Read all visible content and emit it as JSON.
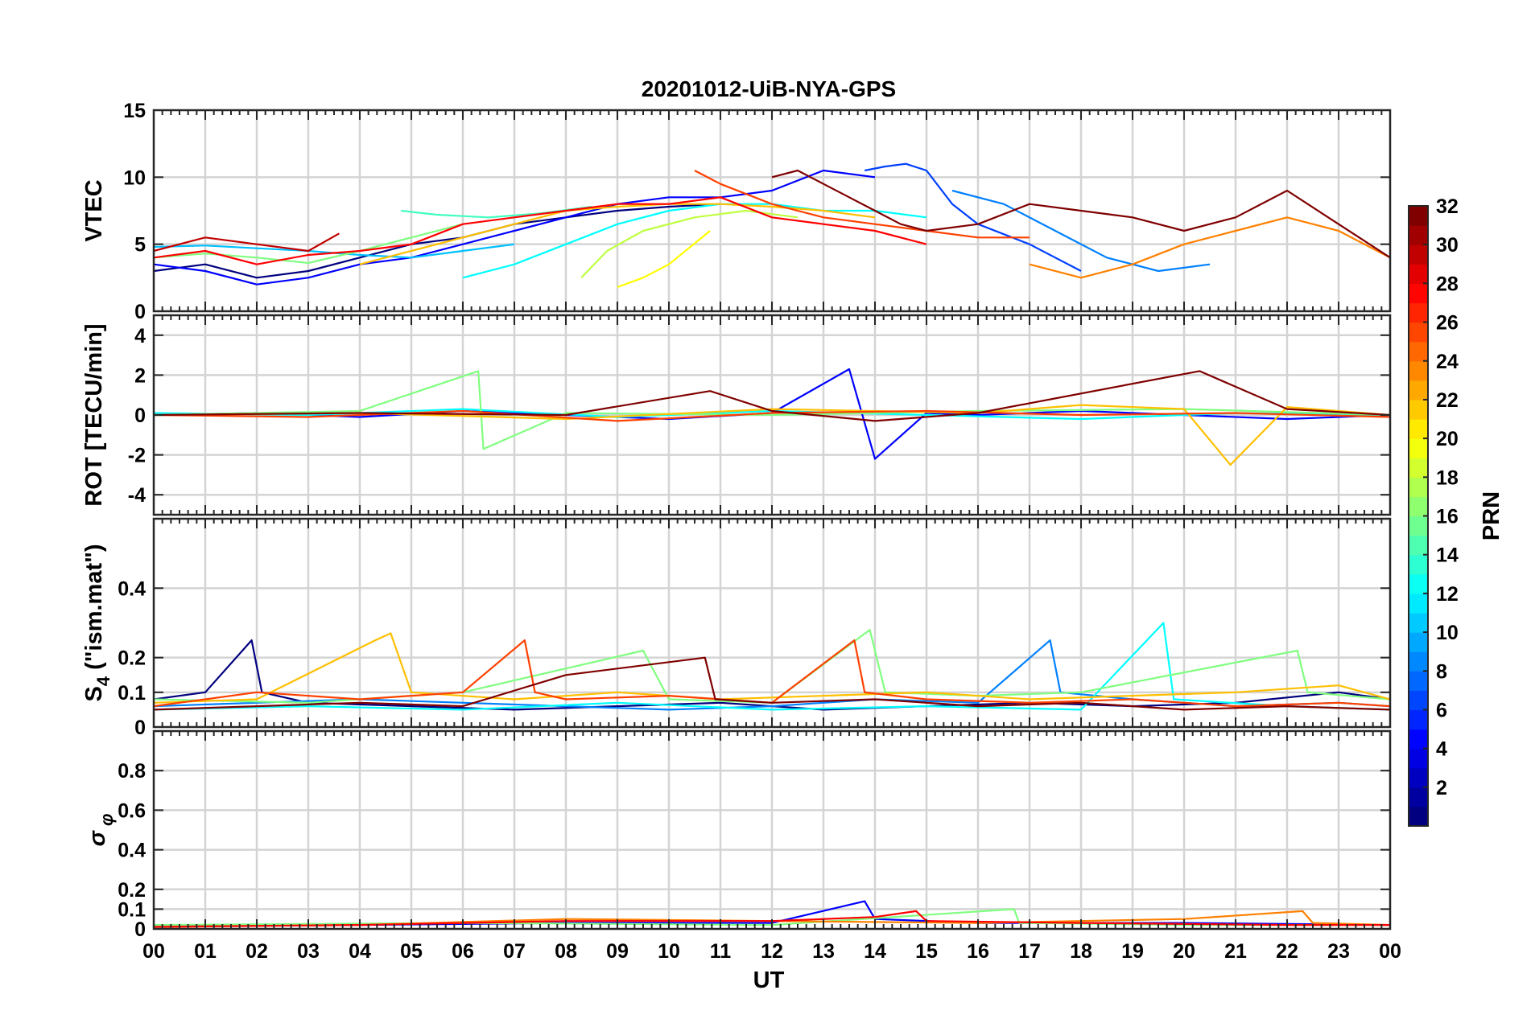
{
  "chart_data": {
    "type": "line",
    "title": "20201012-UiB-NYA-GPS",
    "xlabel": "UT",
    "x_tick_labels": [
      "00",
      "01",
      "02",
      "03",
      "04",
      "05",
      "06",
      "07",
      "08",
      "09",
      "10",
      "11",
      "12",
      "13",
      "14",
      "15",
      "16",
      "17",
      "18",
      "19",
      "20",
      "21",
      "22",
      "23",
      "00"
    ],
    "xlim_hours": [
      0,
      24
    ],
    "grid": true,
    "colorbar": {
      "label": "PRN",
      "colormap": "jet",
      "range": [
        1,
        32
      ],
      "ticks": [
        2,
        4,
        6,
        8,
        10,
        12,
        14,
        16,
        18,
        20,
        22,
        24,
        26,
        28,
        30,
        32
      ]
    },
    "panels": [
      {
        "id": "vtec",
        "ylabel": "VTEC",
        "ylim": [
          0,
          15
        ],
        "y_ticks": [
          0,
          5,
          10,
          15
        ],
        "y_tick_labels": [
          "0",
          "5",
          "10",
          "15"
        ],
        "series": [
          {
            "color": "#00007f",
            "x": [
              0,
              1,
              2,
              3,
              4,
              5,
              6,
              7,
              8,
              9,
              10,
              11
            ],
            "y": [
              3.0,
              3.5,
              2.5,
              3.0,
              4.0,
              5.0,
              5.5,
              6.5,
              7.0,
              7.5,
              7.8,
              8.0
            ]
          },
          {
            "color": "#0000ff",
            "x": [
              0,
              1,
              2,
              3,
              4,
              5,
              6,
              7,
              8,
              9,
              10,
              11,
              12,
              13,
              14
            ],
            "y": [
              3.5,
              3.0,
              2.0,
              2.5,
              3.5,
              4.0,
              5.0,
              6.0,
              7.0,
              8.0,
              8.5,
              8.5,
              9.0,
              10.5,
              10.0
            ]
          },
          {
            "color": "#0040ff",
            "x": [
              13.8,
              14.2,
              14.6,
              15.0,
              15.5,
              16,
              17,
              18
            ],
            "y": [
              10.5,
              10.8,
              11.0,
              10.5,
              8.0,
              6.5,
              5.0,
              3.0
            ]
          },
          {
            "color": "#0080ff",
            "x": [
              15.5,
              16.5,
              17.5,
              18.5,
              19.5,
              20.5
            ],
            "y": [
              9.0,
              8.0,
              6.0,
              4.0,
              3.0,
              3.5
            ]
          },
          {
            "color": "#00c0ff",
            "x": [
              0,
              1,
              2,
              3,
              4,
              5,
              6,
              7
            ],
            "y": [
              4.8,
              4.9,
              4.7,
              4.5,
              4.2,
              4.0,
              4.5,
              5.0
            ]
          },
          {
            "color": "#00ffff",
            "x": [
              6.0,
              7,
              8,
              9,
              10,
              11,
              12,
              13,
              14,
              15
            ],
            "y": [
              2.5,
              3.5,
              5.0,
              6.5,
              7.5,
              8.0,
              8.0,
              7.5,
              7.5,
              7.0
            ]
          },
          {
            "color": "#40ffbf",
            "x": [
              4.8,
              5.5,
              6.5,
              7.5,
              8.5
            ],
            "y": [
              7.5,
              7.2,
              7.0,
              7.3,
              7.8
            ]
          },
          {
            "color": "#80ff80",
            "x": [
              0,
              1,
              2,
              3,
              4,
              5,
              6
            ],
            "y": [
              4.0,
              4.3,
              4.0,
              3.6,
              4.5,
              5.5,
              6.5
            ]
          },
          {
            "color": "#bfff40",
            "x": [
              8.3,
              8.8,
              9.5,
              10.5,
              11.5,
              12.5
            ],
            "y": [
              2.5,
              4.5,
              6.0,
              7.0,
              7.5,
              7.0
            ]
          },
          {
            "color": "#ffff00",
            "x": [
              9.0,
              9.5,
              10,
              10.8
            ],
            "y": [
              1.8,
              2.5,
              3.5,
              6.0
            ]
          },
          {
            "color": "#ffbf00",
            "x": [
              4,
              5,
              6,
              7,
              8,
              9,
              10,
              11,
              12,
              13,
              14
            ],
            "y": [
              3.5,
              4.5,
              5.5,
              6.5,
              7.5,
              7.8,
              8.0,
              8.0,
              7.8,
              7.5,
              7.0
            ]
          },
          {
            "color": "#ff8000",
            "x": [
              17,
              18,
              19,
              20,
              21,
              22,
              23,
              24
            ],
            "y": [
              3.5,
              2.5,
              3.5,
              5.0,
              6.0,
              7.0,
              6.0,
              4.0
            ]
          },
          {
            "color": "#ff4000",
            "x": [
              10.5,
              11,
              12,
              13,
              14,
              15,
              16,
              17
            ],
            "y": [
              10.5,
              9.5,
              8.0,
              7.0,
              6.5,
              6.0,
              5.5,
              5.5
            ]
          },
          {
            "color": "#ff0000",
            "x": [
              0,
              1,
              2,
              3,
              4,
              5,
              6,
              7,
              8,
              9,
              10,
              11,
              12,
              13,
              14,
              15
            ],
            "y": [
              4.0,
              4.5,
              3.5,
              4.2,
              4.5,
              5.0,
              6.5,
              7.0,
              7.5,
              8.0,
              8.0,
              8.5,
              7.0,
              6.5,
              6.0,
              5.0
            ]
          },
          {
            "color": "#bf0000",
            "x": [
              0,
              1,
              2,
              3,
              3.6
            ],
            "y": [
              4.5,
              5.5,
              5.0,
              4.5,
              5.8
            ]
          },
          {
            "color": "#7f0000",
            "x": [
              12,
              12.5,
              13,
              13.5,
              14,
              14.5,
              15,
              16,
              17,
              18,
              19,
              20,
              21,
              22,
              23,
              24
            ],
            "y": [
              10.0,
              10.5,
              9.5,
              8.5,
              7.5,
              6.5,
              6.0,
              6.5,
              8.0,
              7.5,
              7.0,
              6.0,
              7.0,
              9.0,
              6.5,
              4.0
            ]
          }
        ]
      },
      {
        "id": "rot",
        "ylabel": "ROT [TECU/min]",
        "ylim": [
          -5,
          5
        ],
        "y_ticks": [
          -4,
          -2,
          0,
          2,
          4
        ],
        "y_tick_labels": [
          "-4",
          "-2",
          "0",
          "2",
          "4"
        ],
        "series": [
          {
            "color": "#0000ff",
            "x": [
              0,
              2,
              4,
              6,
              8,
              10,
              12,
              13.5,
              14,
              15,
              16,
              18,
              20,
              22,
              24
            ],
            "y": [
              0,
              0.1,
              -0.1,
              0.2,
              0,
              -0.2,
              0.1,
              2.3,
              -2.2,
              0.1,
              0,
              0.2,
              0,
              -0.2,
              0
            ]
          },
          {
            "color": "#00ffff",
            "x": [
              0,
              3,
              6,
              9,
              12,
              15,
              18,
              21,
              24
            ],
            "y": [
              0.1,
              0,
              0.3,
              -0.1,
              0.2,
              0,
              -0.2,
              0.1,
              0
            ]
          },
          {
            "color": "#80ff80",
            "x": [
              0,
              4,
              6.3,
              6.4,
              8,
              12,
              16,
              20,
              24
            ],
            "y": [
              0,
              0.2,
              2.2,
              -1.7,
              0.1,
              0,
              0.2,
              0.3,
              0
            ]
          },
          {
            "color": "#ffbf00",
            "x": [
              0,
              4,
              8,
              12,
              16,
              18,
              20,
              20.9,
              22,
              24
            ],
            "y": [
              0,
              0.1,
              -0.2,
              0.3,
              0.1,
              0.5,
              0.3,
              -2.5,
              0.4,
              0
            ]
          },
          {
            "color": "#ff4000",
            "x": [
              0,
              3,
              6,
              9,
              12,
              15,
              18,
              21,
              24
            ],
            "y": [
              0,
              -0.1,
              0.2,
              -0.3,
              0.1,
              0.2,
              0,
              0.1,
              -0.1
            ]
          },
          {
            "color": "#7f0000",
            "x": [
              0,
              4,
              8,
              10.8,
              12,
              14,
              16,
              20.3,
              22,
              24
            ],
            "y": [
              0,
              0.1,
              0,
              1.2,
              0.2,
              -0.3,
              0.1,
              2.2,
              0.3,
              0
            ]
          }
        ]
      },
      {
        "id": "s4",
        "ylabel": "S4 (\"ism.mat\")",
        "ylim": [
          0,
          0.6
        ],
        "y_ticks": [
          0,
          0.1,
          0.2,
          0.4
        ],
        "y_tick_labels": [
          "0",
          "0.1",
          "0.2",
          "0.4"
        ],
        "series": [
          {
            "color": "#00007f",
            "x": [
              0,
              1,
              1.9,
              2.1,
              3,
              5,
              7,
              9,
              11,
              13,
              15,
              17,
              19,
              21,
              23,
              24
            ],
            "y": [
              0.08,
              0.1,
              0.25,
              0.1,
              0.07,
              0.06,
              0.05,
              0.06,
              0.07,
              0.05,
              0.06,
              0.07,
              0.06,
              0.07,
              0.1,
              0.08
            ]
          },
          {
            "color": "#0080ff",
            "x": [
              0,
              2,
              4,
              6,
              8,
              10,
              12,
              14,
              16,
              17.4,
              17.6,
              19,
              21,
              23,
              24
            ],
            "y": [
              0.06,
              0.07,
              0.08,
              0.07,
              0.06,
              0.05,
              0.06,
              0.08,
              0.07,
              0.25,
              0.1,
              0.08,
              0.06,
              0.07,
              0.06
            ]
          },
          {
            "color": "#00ffff",
            "x": [
              0,
              3,
              6,
              9,
              12,
              15,
              18,
              19.6,
              19.8,
              22,
              24
            ],
            "y": [
              0.05,
              0.06,
              0.05,
              0.07,
              0.05,
              0.06,
              0.05,
              0.3,
              0.08,
              0.06,
              0.05
            ]
          },
          {
            "color": "#80ff80",
            "x": [
              0,
              3,
              6,
              9.5,
              10,
              12,
              13.9,
              14.2,
              16,
              18,
              22.2,
              22.4,
              24
            ],
            "y": [
              0.08,
              0.07,
              0.1,
              0.22,
              0.08,
              0.07,
              0.28,
              0.1,
              0.09,
              0.1,
              0.22,
              0.1,
              0.08
            ]
          },
          {
            "color": "#ffbf00",
            "x": [
              0,
              2,
              4.3,
              4.6,
              5,
              7,
              9,
              11,
              13,
              15,
              17,
              19,
              21,
              23,
              24
            ],
            "y": [
              0.07,
              0.08,
              0.25,
              0.27,
              0.1,
              0.08,
              0.1,
              0.08,
              0.09,
              0.1,
              0.08,
              0.09,
              0.1,
              0.12,
              0.08
            ]
          },
          {
            "color": "#ff4000",
            "x": [
              0,
              2,
              4,
              6,
              7.2,
              7.4,
              8,
              10,
              12,
              13.6,
              13.8,
              15,
              17,
              19,
              21,
              23,
              24
            ],
            "y": [
              0.06,
              0.1,
              0.08,
              0.1,
              0.25,
              0.1,
              0.08,
              0.09,
              0.07,
              0.25,
              0.1,
              0.08,
              0.07,
              0.08,
              0.06,
              0.07,
              0.06
            ]
          },
          {
            "color": "#7f0000",
            "x": [
              0,
              2,
              4,
              6,
              8,
              10.7,
              10.9,
              12,
              14,
              16,
              18,
              20,
              22,
              24
            ],
            "y": [
              0.05,
              0.06,
              0.07,
              0.06,
              0.15,
              0.2,
              0.08,
              0.07,
              0.08,
              0.06,
              0.07,
              0.05,
              0.06,
              0.05
            ]
          }
        ]
      },
      {
        "id": "sigma",
        "ylabel": "σ φ",
        "ylim": [
          0,
          1
        ],
        "y_ticks": [
          0,
          0.1,
          0.2,
          0.4,
          0.6,
          0.8
        ],
        "y_tick_labels": [
          "0",
          "0.1",
          "0.2",
          "0.4",
          "0.6",
          "0.8"
        ],
        "series": [
          {
            "color": "#0000ff",
            "x": [
              0,
              4,
              8,
              12,
              13.8,
              14,
              16,
              20,
              24
            ],
            "y": [
              0.02,
              0.02,
              0.03,
              0.03,
              0.14,
              0.05,
              0.03,
              0.03,
              0.02
            ]
          },
          {
            "color": "#80ff80",
            "x": [
              0,
              6,
              12,
              16.7,
              16.8,
              20,
              24
            ],
            "y": [
              0.02,
              0.03,
              0.02,
              0.1,
              0.03,
              0.02,
              0.02
            ]
          },
          {
            "color": "#ff8000",
            "x": [
              0,
              4,
              8,
              12,
              16,
              20,
              22.3,
              22.5,
              24
            ],
            "y": [
              0.01,
              0.02,
              0.05,
              0.04,
              0.03,
              0.05,
              0.09,
              0.03,
              0.02
            ]
          },
          {
            "color": "#ff0000",
            "x": [
              0,
              4,
              8,
              12,
              14,
              14.8,
              15,
              18,
              22,
              24
            ],
            "y": [
              0.01,
              0.02,
              0.04,
              0.04,
              0.06,
              0.09,
              0.04,
              0.03,
              0.02,
              0.02
            ]
          }
        ]
      }
    ]
  }
}
